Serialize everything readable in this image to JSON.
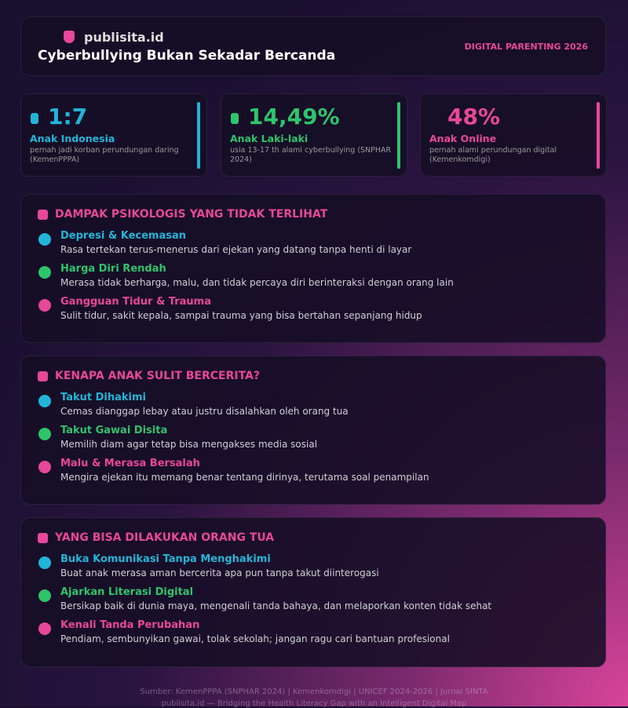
{
  "header": {
    "brand": "publisita.id",
    "title": "Cyberbullying Bukan Sekadar Bercanda",
    "tag": "DIGITAL PARENTING 2026"
  },
  "stats": [
    {
      "value": "1:7",
      "label": "Anak Indonesia",
      "note": "pernah jadi korban perundungan daring (KemenPPPA)"
    },
    {
      "value": "14,49%",
      "label": "Anak Laki-laki",
      "note": "usia 13-17 th alami cyberbullying (SNPHAR 2024)"
    },
    {
      "value": "48%",
      "label": "Anak Online",
      "note": "pernah alami perundungan digital (Kemenkomdigi)"
    }
  ],
  "sections": [
    {
      "title": "DAMPAK PSIKOLOGIS YANG TIDAK TERLIHAT",
      "items": [
        {
          "title": "Depresi & Kecemasan",
          "text": "Rasa tertekan terus-menerus dari ejekan yang datang tanpa henti di layar"
        },
        {
          "title": "Harga Diri Rendah",
          "text": "Merasa tidak berharga, malu, dan tidak percaya diri berinteraksi dengan orang lain"
        },
        {
          "title": "Gangguan Tidur & Trauma",
          "text": "Sulit tidur, sakit kepala, sampai trauma yang bisa bertahan sepanjang hidup"
        }
      ]
    },
    {
      "title": "KENAPA ANAK SULIT BERCERITA?",
      "items": [
        {
          "title": "Takut Dihakimi",
          "text": "Cemas dianggap lebay atau justru disalahkan oleh orang tua"
        },
        {
          "title": "Takut Gawai Disita",
          "text": "Memilih diam agar tetap bisa mengakses media sosial"
        },
        {
          "title": "Malu & Merasa Bersalah",
          "text": "Mengira ejekan itu memang benar tentang dirinya, terutama soal penampilan"
        }
      ]
    },
    {
      "title": "YANG BISA DILAKUKAN ORANG TUA",
      "items": [
        {
          "title": "Buka Komunikasi Tanpa Menghakimi",
          "text": "Buat anak merasa aman bercerita apa pun tanpa takut diinterogasi"
        },
        {
          "title": "Ajarkan Literasi Digital",
          "text": "Bersikap baik di dunia maya, mengenali tanda bahaya, dan melaporkan konten tidak sehat"
        },
        {
          "title": "Kenali Tanda Perubahan",
          "text": "Pendiam, sembunyikan gawai, tolak sekolah; jangan ragu cari bantuan profesional"
        }
      ]
    }
  ],
  "footer": {
    "source": "Sumber: KemenPPPA (SNPHAR 2024) | Kemenkomdigi | UNICEF 2024-2026 | Jurnal SINTA",
    "credit": "publisita.id — Bridging the Health Literacy Gap with an Intelligent Digital Map"
  }
}
